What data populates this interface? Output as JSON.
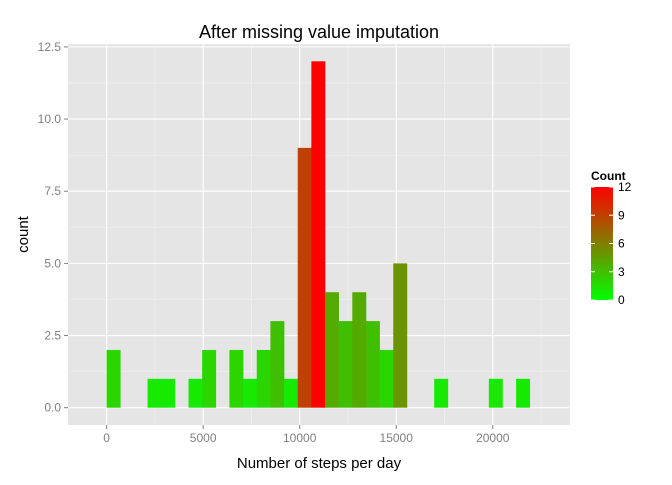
{
  "chart_data": {
    "type": "bar",
    "title": "After missing value imputation",
    "xlabel": "Number of steps per day",
    "ylabel": "count",
    "xlim": [
      -2000,
      24000
    ],
    "ylim": [
      -0.6,
      12.6
    ],
    "x_ticks": [
      0,
      5000,
      10000,
      15000,
      20000
    ],
    "x_tick_labels": [
      "0",
      "5000",
      "10000",
      "15000",
      "20000"
    ],
    "y_ticks": [
      0,
      2.5,
      5,
      7.5,
      10,
      12.5
    ],
    "y_tick_labels": [
      "0.0",
      "2.5",
      "5.0",
      "7.5",
      "10.0",
      "12.5"
    ],
    "bin_width": 707,
    "x": [
      353,
      1060,
      1767,
      2474,
      3181,
      3888,
      4595,
      5302,
      6009,
      6716,
      7423,
      8130,
      8837,
      9544,
      10251,
      10958,
      11665,
      12372,
      13079,
      13786,
      14493,
      15200,
      15907,
      16614,
      17321,
      18028,
      18735,
      19442,
      20149,
      20856,
      21563
    ],
    "values": [
      2,
      0,
      0,
      1,
      1,
      0,
      1,
      2,
      0,
      2,
      1,
      2,
      3,
      1,
      9,
      12,
      4,
      3,
      4,
      3,
      2,
      5,
      0,
      0,
      1,
      0,
      0,
      0,
      1,
      0,
      1
    ],
    "grid": true,
    "legend": {
      "title": "Count",
      "placement": "right",
      "range": [
        0,
        12
      ],
      "ticks": [
        0,
        3,
        6,
        9,
        12
      ],
      "tick_labels": [
        "0",
        "3",
        "6",
        "9",
        "12"
      ],
      "low_color": "#00ff00",
      "high_color": "#ff0000"
    },
    "colors": {
      "panel": "#e5e5e5",
      "grid_major": "#ffffff",
      "grid_minor": "#f2f2f2"
    }
  }
}
